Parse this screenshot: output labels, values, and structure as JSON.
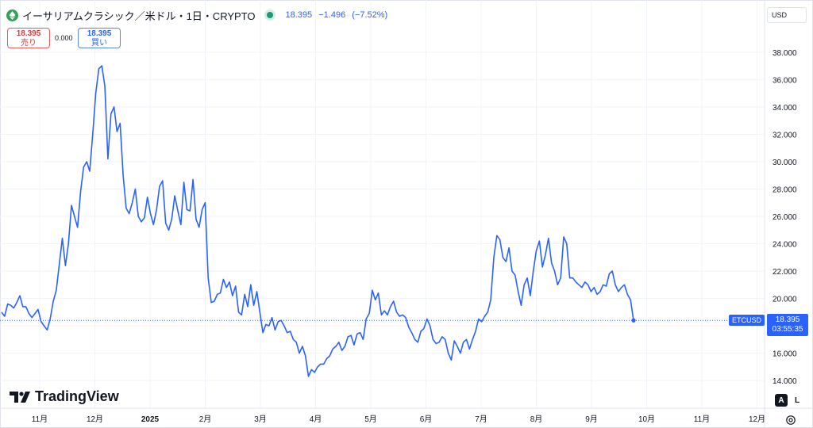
{
  "header": {
    "title": "イーサリアムクラシック／米ドル・1日・CRYPTO",
    "price": "18.395",
    "change": "−1.496",
    "change_pct": "(−7.52%)"
  },
  "trade": {
    "sell_value": "18.395",
    "sell_label": "売り",
    "spread": "0.000",
    "buy_value": "18.395",
    "buy_label": "買い"
  },
  "currency_button": "USD",
  "price_tag": {
    "symbol": "ETCUSD",
    "price": "18.395",
    "countdown": "03:55:35"
  },
  "logo_text": "TradingView",
  "scale_buttons": {
    "auto": "A",
    "log": "L"
  },
  "colors": {
    "line": "#2962ff",
    "buy": "#2962ff",
    "sell": "#e03a3a",
    "live_dot": "#1a9a75"
  },
  "chart_data": {
    "type": "line",
    "series": [
      {
        "values": [
          19.0,
          18.7,
          19.6,
          19.5,
          19.3,
          19.7,
          20.2,
          19.4,
          19.4,
          18.9,
          18.6,
          18.9,
          19.2,
          18.3,
          18.0,
          17.7,
          18.5,
          19.8,
          20.6,
          22.5,
          24.4,
          22.4,
          24.0,
          26.8,
          26.0,
          25.2,
          27.8,
          29.6,
          30.0,
          29.3,
          32.0,
          35.0,
          36.8,
          37.0,
          35.5,
          30.2,
          33.5,
          34.0,
          32.2,
          32.8,
          29.0,
          26.6,
          26.2,
          27.0,
          28.0,
          26.0,
          25.6,
          25.9,
          27.4,
          26.2,
          25.4,
          26.5,
          28.2,
          28.6,
          25.5,
          25.0,
          25.8,
          27.5,
          26.4,
          25.4,
          28.5,
          26.5,
          26.4,
          28.7,
          25.8,
          25.2,
          26.5,
          27.0,
          21.5,
          19.7,
          19.8,
          20.3,
          20.4,
          21.4,
          20.8,
          21.2,
          20.2,
          20.9,
          19.0,
          18.8,
          20.3,
          19.4,
          21.0,
          19.5,
          20.5,
          19.0,
          17.5,
          18.1,
          18.0,
          18.6,
          17.7,
          18.3,
          18.4,
          18.0,
          17.5,
          17.6,
          17.0,
          16.8,
          16.0,
          16.5,
          15.8,
          14.3,
          14.8,
          14.6,
          15.0,
          15.2,
          15.2,
          15.6,
          15.8,
          16.3,
          16.5,
          16.8,
          16.2,
          16.5,
          17.2,
          17.3,
          16.6,
          17.4,
          17.5,
          17.0,
          18.5,
          18.9,
          20.6,
          19.9,
          20.4,
          18.8,
          19.1,
          18.8,
          19.4,
          19.8,
          19.0,
          18.7,
          18.8,
          18.6,
          17.9,
          17.5,
          17.0,
          16.8,
          17.6,
          17.8,
          18.5,
          18.0,
          17.0,
          16.7,
          16.8,
          17.2,
          17.0,
          16.0,
          15.5,
          16.9,
          16.5,
          16.0,
          16.8,
          17.0,
          16.3,
          17.0,
          17.6,
          18.5,
          18.3,
          18.7,
          19.0,
          19.9,
          23.0,
          24.6,
          24.3,
          23.0,
          22.7,
          23.7,
          22.0,
          21.7,
          20.5,
          19.5,
          21.0,
          21.5,
          20.2,
          22.0,
          23.5,
          24.2,
          22.3,
          23.2,
          24.4,
          22.6,
          22.0,
          21.0,
          21.5,
          24.5,
          24.0,
          21.5,
          21.5,
          21.2,
          21.0,
          20.8,
          21.2,
          21.0,
          20.5,
          20.8,
          20.3,
          20.5,
          21.0,
          20.9,
          21.8,
          22.0,
          21.0,
          20.5,
          20.8,
          21.0,
          20.3,
          19.9,
          18.395
        ]
      }
    ],
    "ylim": [
      12.5,
      39.5
    ],
    "y_ticks": [
      "14.000",
      "16.000",
      "18.000",
      "20.000",
      "22.000",
      "24.000",
      "26.000",
      "28.000",
      "30.000",
      "32.000",
      "34.000",
      "36.000",
      "38.000"
    ],
    "x_ticks": [
      "11月",
      "12月",
      "2025",
      "2月",
      "3月",
      "4月",
      "5月",
      "6月",
      "7月",
      "8月",
      "9月",
      "10月",
      "11月",
      "12月"
    ],
    "last_value": 18.395,
    "grid": true
  }
}
